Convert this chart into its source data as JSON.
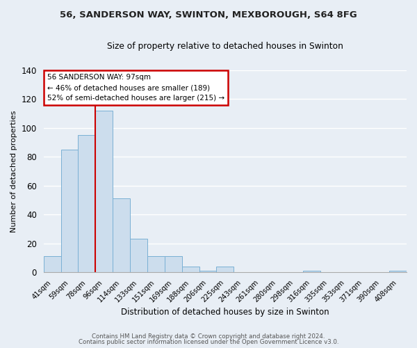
{
  "title": "56, SANDERSON WAY, SWINTON, MEXBOROUGH, S64 8FG",
  "subtitle": "Size of property relative to detached houses in Swinton",
  "xlabel": "Distribution of detached houses by size in Swinton",
  "ylabel": "Number of detached properties",
  "bar_labels": [
    "41sqm",
    "59sqm",
    "78sqm",
    "96sqm",
    "114sqm",
    "133sqm",
    "151sqm",
    "169sqm",
    "188sqm",
    "206sqm",
    "225sqm",
    "243sqm",
    "261sqm",
    "280sqm",
    "298sqm",
    "316sqm",
    "335sqm",
    "353sqm",
    "371sqm",
    "390sqm",
    "408sqm"
  ],
  "bar_values": [
    11,
    85,
    95,
    112,
    51,
    23,
    11,
    11,
    4,
    1,
    4,
    0,
    0,
    0,
    0,
    1,
    0,
    0,
    0,
    0,
    1
  ],
  "bar_color": "#ccdded",
  "bar_edge_color": "#7ab0d4",
  "ylim": [
    0,
    140
  ],
  "yticks": [
    0,
    20,
    40,
    60,
    80,
    100,
    120,
    140
  ],
  "vline_x": 2.5,
  "vline_color": "#cc0000",
  "annotation_title": "56 SANDERSON WAY: 97sqm",
  "annotation_line1": "← 46% of detached houses are smaller (189)",
  "annotation_line2": "52% of semi-detached houses are larger (215) →",
  "annotation_box_facecolor": "#ffffff",
  "annotation_box_edgecolor": "#cc0000",
  "footer1": "Contains HM Land Registry data © Crown copyright and database right 2024.",
  "footer2": "Contains public sector information licensed under the Open Government Licence v3.0.",
  "background_color": "#e8eef5",
  "plot_bg_color": "#e8eef5",
  "grid_color": "#ffffff"
}
